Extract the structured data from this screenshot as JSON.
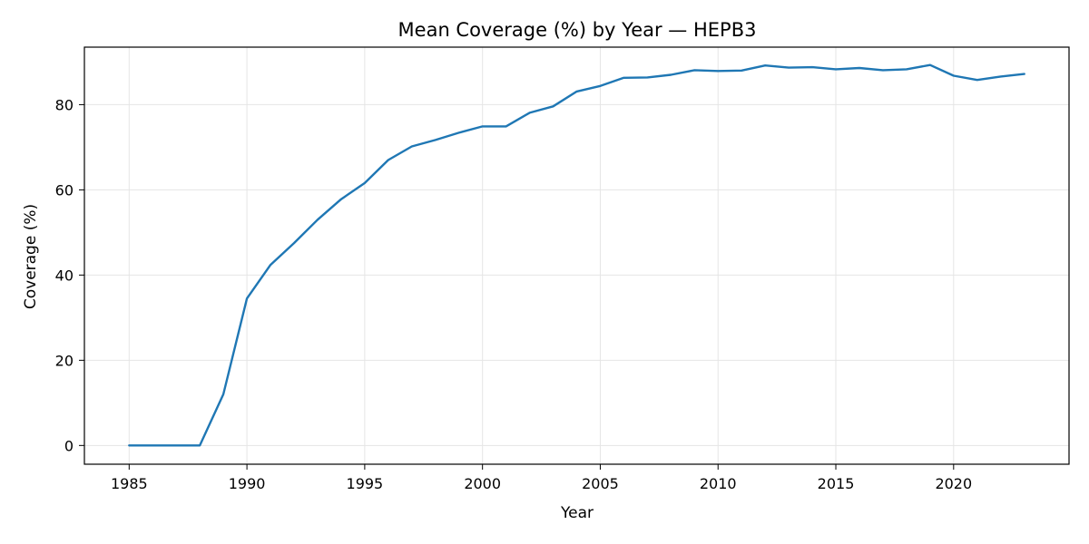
{
  "chart_data": {
    "type": "line",
    "title": "Mean Coverage (%) by Year — HEPB3",
    "xlabel": "Year",
    "ylabel": "Coverage (%)",
    "xlim": [
      1983.1,
      1925.0
    ],
    "ylim": [
      -4.4,
      93.5
    ],
    "grid": true,
    "x_ticks": [
      1985,
      1990,
      1995,
      2000,
      2005,
      2010,
      2015,
      2020
    ],
    "y_ticks": [
      0,
      20,
      40,
      60,
      80
    ],
    "colors": {
      "line": "#1f77b4",
      "grid": "#e5e5e5",
      "axis": "#000000"
    },
    "series": [
      {
        "x": [
          1985,
          1986,
          1987,
          1988,
          1989,
          1990,
          1991,
          1992,
          1993,
          1994,
          1995,
          1996,
          1997,
          1998,
          1999,
          2000,
          2001,
          2002,
          2003,
          2004,
          2005,
          2006,
          2007,
          2008,
          2009,
          2010,
          2011,
          2012,
          2013,
          2014,
          2015,
          2016,
          2017,
          2018,
          2019,
          2020,
          2021,
          2022,
          2023
        ],
        "values": [
          0,
          0,
          0,
          0,
          12,
          34.5,
          42.4,
          47.5,
          53.0,
          57.8,
          61.6,
          67.0,
          70.2,
          71.7,
          73.4,
          74.9,
          74.9,
          78.1,
          79.6,
          83.1,
          84.4,
          86.3,
          86.4,
          87.0,
          88.1,
          87.9,
          88.0,
          89.2,
          88.7,
          88.8,
          88.3,
          88.6,
          88.1,
          88.3,
          89.3,
          86.8,
          85.8,
          86.6,
          87.2
        ]
      }
    ]
  }
}
